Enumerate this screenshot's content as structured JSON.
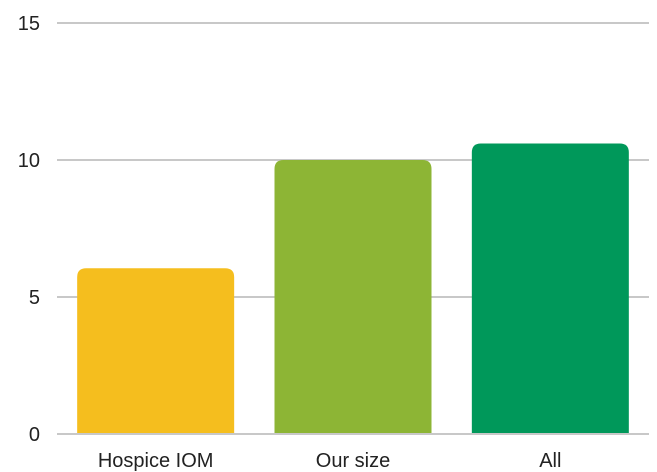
{
  "chart_data": {
    "type": "bar",
    "title": "",
    "xlabel": "",
    "ylabel": "",
    "categories": [
      "Hospice IOM",
      "Our size",
      "All"
    ],
    "values": [
      6.05,
      10.0,
      10.6
    ],
    "colors": [
      "#F5BE1E",
      "#8DB535",
      "#00985A"
    ],
    "ylim": [
      0,
      15
    ],
    "yticks": [
      0,
      5,
      10,
      15
    ],
    "ytick_labels": [
      "0",
      "5",
      "10",
      "15"
    ],
    "grid": true,
    "legend": "none"
  }
}
